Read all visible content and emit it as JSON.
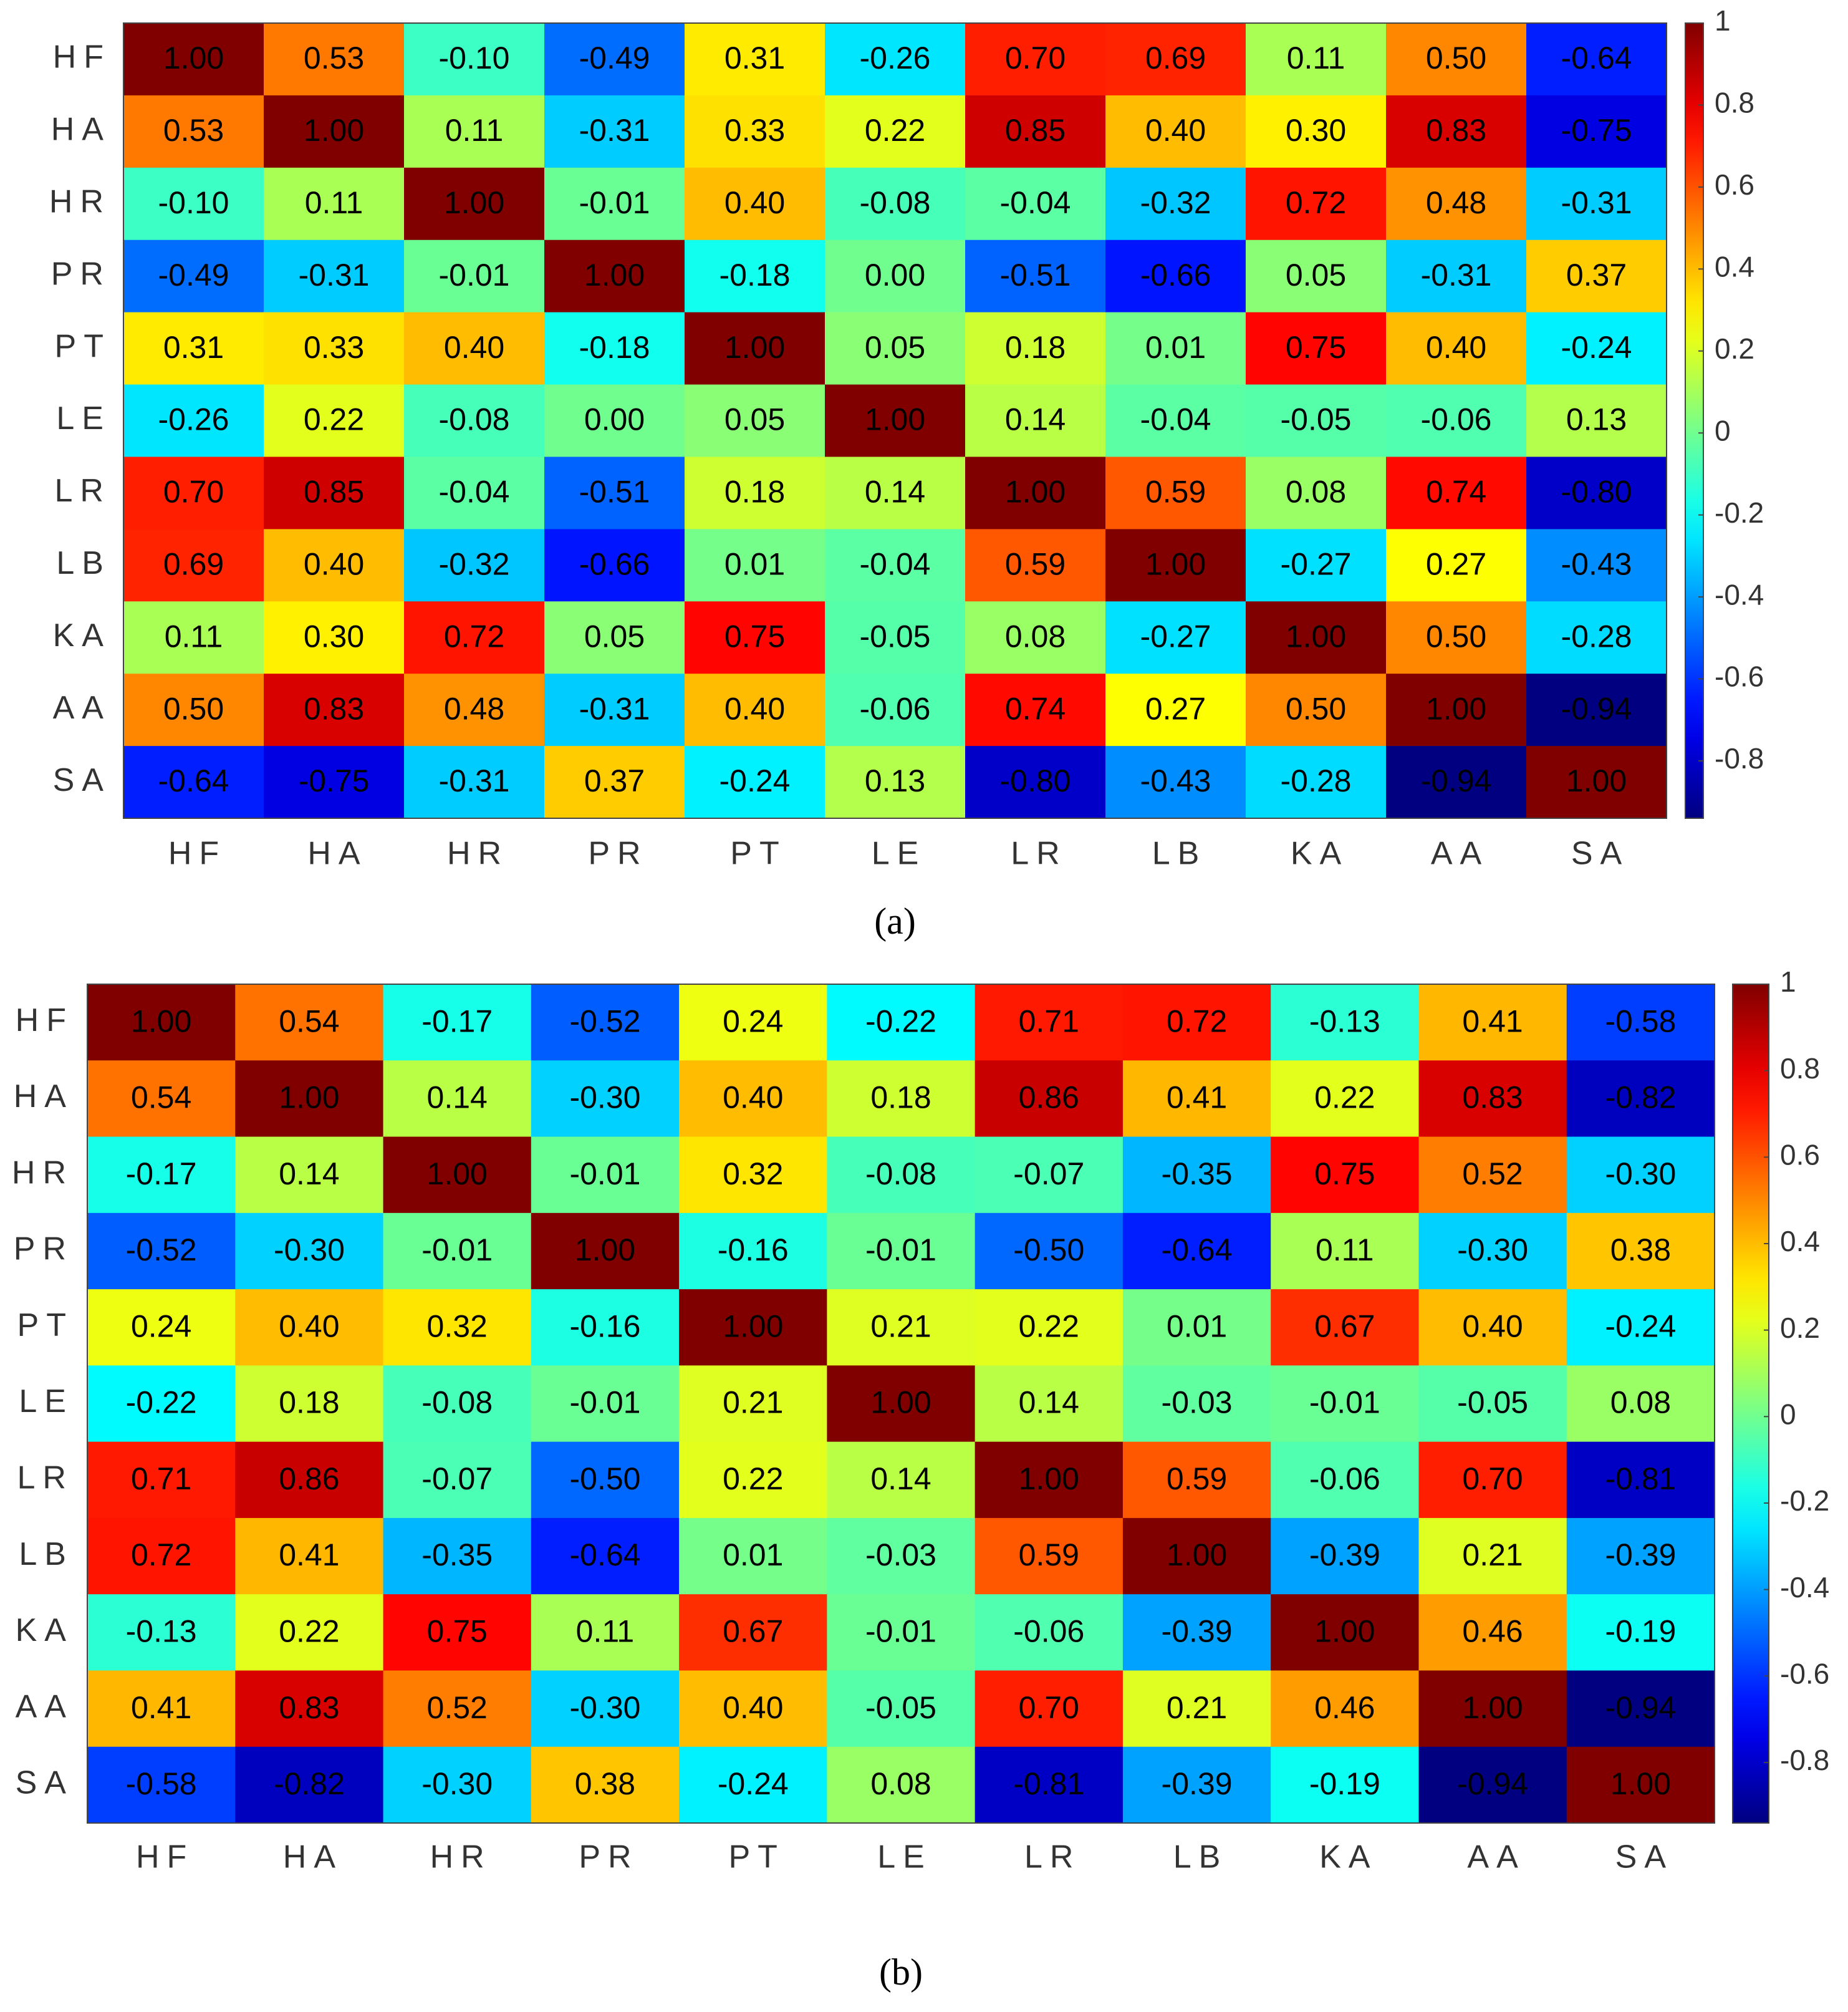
{
  "chart_data": [
    {
      "type": "heatmap",
      "caption": "(a)",
      "colormap": "jet",
      "categories": [
        "HF",
        "HA",
        "HR",
        "PR",
        "PT",
        "LE",
        "LR",
        "LB",
        "KA",
        "AA",
        "SA"
      ],
      "values": [
        [
          1,
          0.53,
          -0.1,
          -0.49,
          0.31,
          -0.26,
          0.7,
          0.69,
          0.11,
          0.5,
          -0.64
        ],
        [
          0.53,
          1,
          0.11,
          -0.31,
          0.33,
          0.22,
          0.85,
          0.4,
          0.3,
          0.83,
          -0.75
        ],
        [
          -0.1,
          0.11,
          1,
          -0.01,
          0.4,
          -0.08,
          -0.04,
          -0.32,
          0.72,
          0.48,
          -0.31
        ],
        [
          -0.49,
          -0.31,
          -0.01,
          1,
          -0.18,
          0,
          -0.51,
          -0.66,
          0.05,
          -0.31,
          0.37
        ],
        [
          0.31,
          0.33,
          0.4,
          -0.18,
          1,
          0.05,
          0.18,
          0.01,
          0.75,
          0.4,
          -0.24
        ],
        [
          -0.26,
          0.22,
          -0.08,
          0,
          0.05,
          1,
          0.14,
          -0.04,
          -0.05,
          -0.06,
          0.13
        ],
        [
          0.7,
          0.85,
          -0.04,
          -0.51,
          0.18,
          0.14,
          1,
          0.59,
          0.08,
          0.74,
          -0.8
        ],
        [
          0.69,
          0.4,
          -0.32,
          -0.66,
          0.01,
          -0.04,
          0.59,
          1,
          -0.27,
          0.27,
          -0.43
        ],
        [
          0.11,
          0.3,
          0.72,
          0.05,
          0.75,
          -0.05,
          0.08,
          -0.27,
          1,
          0.5,
          -0.28
        ],
        [
          0.5,
          0.83,
          0.48,
          -0.31,
          0.4,
          -0.06,
          0.74,
          0.27,
          0.5,
          1,
          -0.94
        ],
        [
          -0.64,
          -0.75,
          -0.31,
          0.37,
          -0.24,
          0.13,
          -0.8,
          -0.43,
          -0.28,
          -0.94,
          1
        ]
      ],
      "value_labels": [
        [
          "1.00",
          "0.53",
          "-0.10",
          "-0.49",
          "0.31",
          "-0.26",
          "0.70",
          "0.69",
          "0.11",
          "0.50",
          "-0.64"
        ],
        [
          "0.53",
          "1.00",
          "0.11",
          "-0.31",
          "0.33",
          "0.22",
          "0.85",
          "0.40",
          "0.30",
          "0.83",
          "-0.75"
        ],
        [
          "-0.10",
          "0.11",
          "1.00",
          "-0.01",
          "0.40",
          "-0.08",
          "-0.04",
          "-0.32",
          "0.72",
          "0.48",
          "-0.31"
        ],
        [
          "-0.49",
          "-0.31",
          "-0.01",
          "1.00",
          "-0.18",
          "0.00",
          "-0.51",
          "-0.66",
          "0.05",
          "-0.31",
          "0.37"
        ],
        [
          "0.31",
          "0.33",
          "0.40",
          "-0.18",
          "1.00",
          "0.05",
          "0.18",
          "0.01",
          "0.75",
          "0.40",
          "-0.24"
        ],
        [
          "-0.26",
          "0.22",
          "-0.08",
          "0.00",
          "0.05",
          "1.00",
          "0.14",
          "-0.04",
          "-0.05",
          "-0.06",
          "0.13"
        ],
        [
          "0.70",
          "0.85",
          "-0.04",
          "-0.51",
          "0.18",
          "0.14",
          "1.00",
          "0.59",
          "0.08",
          "0.74",
          "-0.80"
        ],
        [
          "0.69",
          "0.40",
          "-0.32",
          "-0.66",
          "0.01",
          "-0.04",
          "0.59",
          "1.00",
          "-0.27",
          "0.27",
          "-0.43"
        ],
        [
          "0.11",
          "0.30",
          "0.72",
          "0.05",
          "0.75",
          "-0.05",
          "0.08",
          "-0.27",
          "1.00",
          "0.50",
          "-0.28"
        ],
        [
          "0.50",
          "0.83",
          "0.48",
          "-0.31",
          "0.40",
          "-0.06",
          "0.74",
          "0.27",
          "0.50",
          "1.00",
          "-0.94"
        ],
        [
          "-0.64",
          "-0.75",
          "-0.31",
          "0.37",
          "-0.24",
          "0.13",
          "-0.80",
          "-0.43",
          "-0.28",
          "-0.94",
          "1.00"
        ]
      ],
      "clim": [
        -0.94,
        1
      ],
      "cticks": [
        1,
        0.8,
        0.6,
        0.4,
        0.2,
        0,
        -0.2,
        -0.4,
        -0.6,
        -0.8
      ]
    },
    {
      "type": "heatmap",
      "caption": "(b)",
      "colormap": "jet",
      "categories": [
        "HF",
        "HA",
        "HR",
        "PR",
        "PT",
        "LE",
        "LR",
        "LB",
        "KA",
        "AA",
        "SA"
      ],
      "values": [
        [
          1,
          0.54,
          -0.17,
          -0.52,
          0.24,
          -0.22,
          0.71,
          0.72,
          -0.13,
          0.41,
          -0.58
        ],
        [
          0.54,
          1,
          0.14,
          -0.3,
          0.4,
          0.18,
          0.86,
          0.41,
          0.22,
          0.83,
          -0.82
        ],
        [
          -0.17,
          0.14,
          1,
          -0.01,
          0.32,
          -0.08,
          -0.07,
          -0.35,
          0.75,
          0.52,
          -0.3
        ],
        [
          -0.52,
          -0.3,
          -0.01,
          1,
          -0.16,
          -0.01,
          -0.5,
          -0.64,
          0.11,
          -0.3,
          0.38
        ],
        [
          0.24,
          0.4,
          0.32,
          -0.16,
          1,
          0.21,
          0.22,
          0.01,
          0.67,
          0.4,
          -0.24
        ],
        [
          -0.22,
          0.18,
          -0.08,
          -0.01,
          0.21,
          1,
          0.14,
          -0.03,
          -0.01,
          -0.05,
          0.08
        ],
        [
          0.71,
          0.86,
          -0.07,
          -0.5,
          0.22,
          0.14,
          1,
          0.59,
          -0.06,
          0.7,
          -0.81
        ],
        [
          0.72,
          0.41,
          -0.35,
          -0.64,
          0.01,
          -0.03,
          0.59,
          1,
          -0.39,
          0.21,
          -0.39
        ],
        [
          -0.13,
          0.22,
          0.75,
          0.11,
          0.67,
          -0.01,
          -0.06,
          -0.39,
          1,
          0.46,
          -0.19
        ],
        [
          0.41,
          0.83,
          0.52,
          -0.3,
          0.4,
          -0.05,
          0.7,
          0.21,
          0.46,
          1,
          -0.94
        ],
        [
          -0.58,
          -0.82,
          -0.3,
          0.38,
          -0.24,
          0.08,
          -0.81,
          -0.39,
          -0.19,
          -0.94,
          1
        ]
      ],
      "value_labels": [
        [
          "1.00",
          "0.54",
          "-0.17",
          "-0.52",
          "0.24",
          "-0.22",
          "0.71",
          "0.72",
          "-0.13",
          "0.41",
          "-0.58"
        ],
        [
          "0.54",
          "1.00",
          "0.14",
          "-0.30",
          "0.40",
          "0.18",
          "0.86",
          "0.41",
          "0.22",
          "0.83",
          "-0.82"
        ],
        [
          "-0.17",
          "0.14",
          "1.00",
          "-0.01",
          "0.32",
          "-0.08",
          "-0.07",
          "-0.35",
          "0.75",
          "0.52",
          "-0.30"
        ],
        [
          "-0.52",
          "-0.30",
          "-0.01",
          "1.00",
          "-0.16",
          "-0.01",
          "-0.50",
          "-0.64",
          "0.11",
          "-0.30",
          "0.38"
        ],
        [
          "0.24",
          "0.40",
          "0.32",
          "-0.16",
          "1.00",
          "0.21",
          "0.22",
          "0.01",
          "0.67",
          "0.40",
          "-0.24"
        ],
        [
          "-0.22",
          "0.18",
          "-0.08",
          "-0.01",
          "0.21",
          "1.00",
          "0.14",
          "-0.03",
          "-0.01",
          "-0.05",
          "0.08"
        ],
        [
          "0.71",
          "0.86",
          "-0.07",
          "-0.50",
          "0.22",
          "0.14",
          "1.00",
          "0.59",
          "-0.06",
          "0.70",
          "-0.81"
        ],
        [
          "0.72",
          "0.41",
          "-0.35",
          "-0.64",
          "0.01",
          "-0.03",
          "0.59",
          "1.00",
          "-0.39",
          "0.21",
          "-0.39"
        ],
        [
          "-0.13",
          "0.22",
          "0.75",
          "0.11",
          "0.67",
          "-0.01",
          "-0.06",
          "-0.39",
          "1.00",
          "0.46",
          "-0.19"
        ],
        [
          "0.41",
          "0.83",
          "0.52",
          "-0.30",
          "0.40",
          "-0.05",
          "0.70",
          "0.21",
          "0.46",
          "1.00",
          "-0.94"
        ],
        [
          "-0.58",
          "-0.82",
          "-0.30",
          "0.38",
          "-0.24",
          "0.08",
          "-0.81",
          "-0.39",
          "-0.19",
          "-0.94",
          "1.00"
        ]
      ],
      "clim": [
        -0.94,
        1
      ],
      "cticks": [
        1,
        0.8,
        0.6,
        0.4,
        0.2,
        0,
        -0.2,
        -0.4,
        -0.6,
        -0.8
      ]
    }
  ]
}
